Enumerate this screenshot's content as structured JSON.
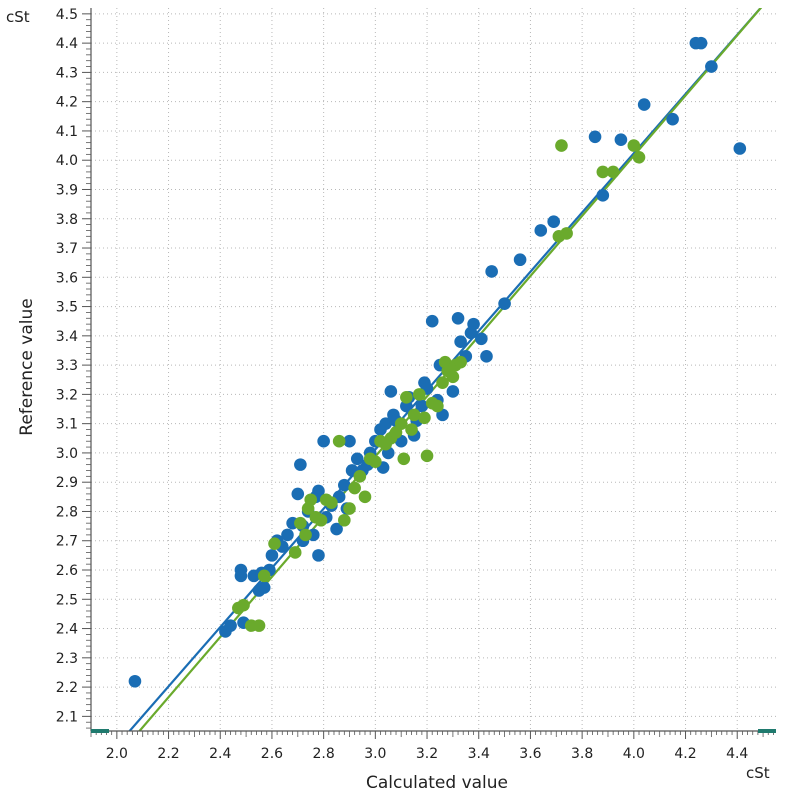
{
  "chart_data": {
    "type": "scatter",
    "title": "",
    "xlabel": "Calculated value",
    "ylabel": "Reference value",
    "x_unit": "cSt",
    "y_unit": "cSt",
    "xlim": [
      1.9,
      4.55
    ],
    "ylim": [
      2.05,
      4.52
    ],
    "x_ticks": [
      "2.0",
      "2.2",
      "2.4",
      "2.6",
      "2.8",
      "3.0",
      "3.2",
      "3.4",
      "3.6",
      "3.8",
      "4.0",
      "4.2",
      "4.4"
    ],
    "y_ticks": [
      "2.1",
      "2.2",
      "2.3",
      "2.4",
      "2.5",
      "2.6",
      "2.7",
      "2.8",
      "2.9",
      "3.0",
      "3.1",
      "3.2",
      "3.3",
      "3.4",
      "3.5",
      "3.6",
      "3.7",
      "3.8",
      "3.9",
      "4.0",
      "4.1",
      "4.2",
      "4.3",
      "4.4",
      "4.5"
    ],
    "grid": true,
    "legend": "none",
    "colors": {
      "blue": "#1a6db4",
      "green": "#6aaa2c",
      "axis": "#555555",
      "grid": "#b8b8b8",
      "scrollbar": "#1f7a6e"
    },
    "series": [
      {
        "color": "#1a6db4",
        "x": [
          2.07,
          2.42,
          2.44,
          2.48,
          2.48,
          2.49,
          2.53,
          2.55,
          2.56,
          2.57,
          2.59,
          2.6,
          2.62,
          2.64,
          2.66,
          2.68,
          2.7,
          2.71,
          2.72,
          2.72,
          2.74,
          2.76,
          2.77,
          2.78,
          2.78,
          2.8,
          2.81,
          2.83,
          2.85,
          2.86,
          2.88,
          2.89,
          2.9,
          2.91,
          2.93,
          2.95,
          2.97,
          2.98,
          3.0,
          3.02,
          3.03,
          3.04,
          3.05,
          3.06,
          3.07,
          3.08,
          3.1,
          3.12,
          3.13,
          3.15,
          3.16,
          3.18,
          3.19,
          3.2,
          3.22,
          3.24,
          3.25,
          3.26,
          3.28,
          3.3,
          3.32,
          3.33,
          3.35,
          3.37,
          3.38,
          3.41,
          3.43,
          3.45,
          3.5,
          3.56,
          3.64,
          3.69,
          3.85,
          3.88,
          3.95,
          4.04,
          4.15,
          4.24,
          4.26,
          4.3,
          4.41
        ],
        "y": [
          2.22,
          2.39,
          2.41,
          2.6,
          2.58,
          2.42,
          2.58,
          2.53,
          2.59,
          2.54,
          2.6,
          2.65,
          2.7,
          2.68,
          2.72,
          2.76,
          2.86,
          2.96,
          2.75,
          2.7,
          2.8,
          2.72,
          2.85,
          2.65,
          2.87,
          3.04,
          2.78,
          2.82,
          2.74,
          2.85,
          2.89,
          2.81,
          3.04,
          2.94,
          2.98,
          2.94,
          2.96,
          3.0,
          3.04,
          3.08,
          2.95,
          3.1,
          3.0,
          3.21,
          3.13,
          3.11,
          3.04,
          3.16,
          3.19,
          3.06,
          3.11,
          3.16,
          3.24,
          3.22,
          3.45,
          3.18,
          3.3,
          3.13,
          3.29,
          3.21,
          3.46,
          3.38,
          3.33,
          3.41,
          3.44,
          3.39,
          3.33,
          3.62,
          3.51,
          3.66,
          3.76,
          3.79,
          4.08,
          3.88,
          4.07,
          4.19,
          4.14,
          4.4,
          4.4,
          4.32,
          4.04
        ]
      },
      {
        "color": "#6aaa2c",
        "x": [
          2.47,
          2.49,
          2.52,
          2.55,
          2.57,
          2.61,
          2.69,
          2.71,
          2.73,
          2.74,
          2.75,
          2.77,
          2.79,
          2.81,
          2.83,
          2.86,
          2.88,
          2.9,
          2.92,
          2.94,
          2.96,
          2.98,
          3.0,
          3.02,
          3.04,
          3.06,
          3.08,
          3.1,
          3.11,
          3.12,
          3.14,
          3.15,
          3.17,
          3.19,
          3.2,
          3.22,
          3.24,
          3.26,
          3.27,
          3.28,
          3.3,
          3.31,
          3.33,
          3.71,
          3.72,
          3.74,
          3.88,
          3.92,
          4.0,
          4.02
        ],
        "y": [
          2.47,
          2.48,
          2.41,
          2.41,
          2.58,
          2.69,
          2.66,
          2.76,
          2.72,
          2.81,
          2.84,
          2.78,
          2.77,
          2.84,
          2.83,
          3.04,
          2.77,
          2.81,
          2.88,
          2.92,
          2.85,
          2.98,
          2.97,
          3.04,
          3.03,
          3.05,
          3.07,
          3.1,
          2.98,
          3.19,
          3.08,
          3.13,
          3.2,
          3.12,
          2.99,
          3.17,
          3.16,
          3.24,
          3.31,
          3.28,
          3.26,
          3.3,
          3.31,
          3.74,
          4.05,
          3.75,
          3.96,
          3.96,
          4.05,
          4.01
        ]
      }
    ],
    "fit_lines": [
      {
        "color": "#1a6db4",
        "x": [
          2.0,
          4.52
        ],
        "y": [
          2.0,
          4.55
        ]
      },
      {
        "color": "#6aaa2c",
        "x": [
          2.0,
          4.52
        ],
        "y": [
          1.96,
          4.55
        ]
      }
    ]
  }
}
